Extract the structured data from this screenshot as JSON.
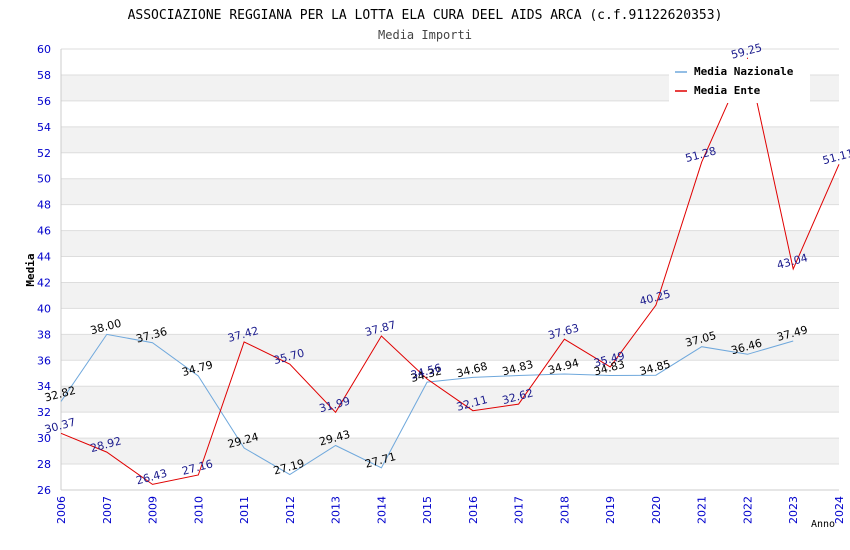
{
  "chart_data": {
    "type": "line",
    "title": "ASSOCIAZIONE REGGIANA PER LA LOTTA ELA CURA DEEL AIDS ARCA (c.f.91122620353)",
    "subtitle": "Media Importi",
    "xlabel": "Anno",
    "ylabel": "Media",
    "ylim": [
      26,
      60
    ],
    "yticks": [
      "26",
      "28",
      "30",
      "32",
      "34",
      "36",
      "38",
      "40",
      "42",
      "44",
      "46",
      "48",
      "50",
      "52",
      "54",
      "56",
      "58",
      "60"
    ],
    "categories": [
      "2006",
      "2007",
      "2009",
      "2010",
      "2011",
      "2012",
      "2013",
      "2014",
      "2015",
      "2016",
      "2017",
      "2018",
      "2019",
      "2020",
      "2021",
      "2022",
      "2023",
      "2024"
    ],
    "legend_position": "top-right",
    "grid": "horizontal alternating bands",
    "series": [
      {
        "name": "Media Nazionale",
        "color": "#6fa8dc",
        "label_color": "#000000",
        "values": [
          32.82,
          38.0,
          37.36,
          34.79,
          29.24,
          27.19,
          29.43,
          27.71,
          34.32,
          34.68,
          34.83,
          34.94,
          34.83,
          34.85,
          37.05,
          36.46,
          37.49,
          null
        ],
        "labels": [
          "32.82",
          "38.00",
          "37.36",
          "34.79",
          "29.24",
          "27.19",
          "29.43",
          "27.71",
          "34.32",
          "34.68",
          "34.83",
          "34.94",
          "34.83",
          "34.85",
          "37.05",
          "36.46",
          "37.49",
          ""
        ]
      },
      {
        "name": "Media Ente",
        "color": "#e00000",
        "label_color": "#1a1a8c",
        "values": [
          30.37,
          28.92,
          26.43,
          27.16,
          37.42,
          35.7,
          31.99,
          37.87,
          34.56,
          32.11,
          32.62,
          37.63,
          35.49,
          40.25,
          51.28,
          59.25,
          43.04,
          51.11
        ],
        "labels": [
          "30.37",
          "28.92",
          "26.43",
          "27.16",
          "37.42",
          "35.70",
          "31.99",
          "37.87",
          "34.56",
          "32.11",
          "32.62",
          "37.63",
          "35.49",
          "40.25",
          "51.28",
          "59.25",
          "43.04",
          "51.11"
        ]
      }
    ]
  }
}
